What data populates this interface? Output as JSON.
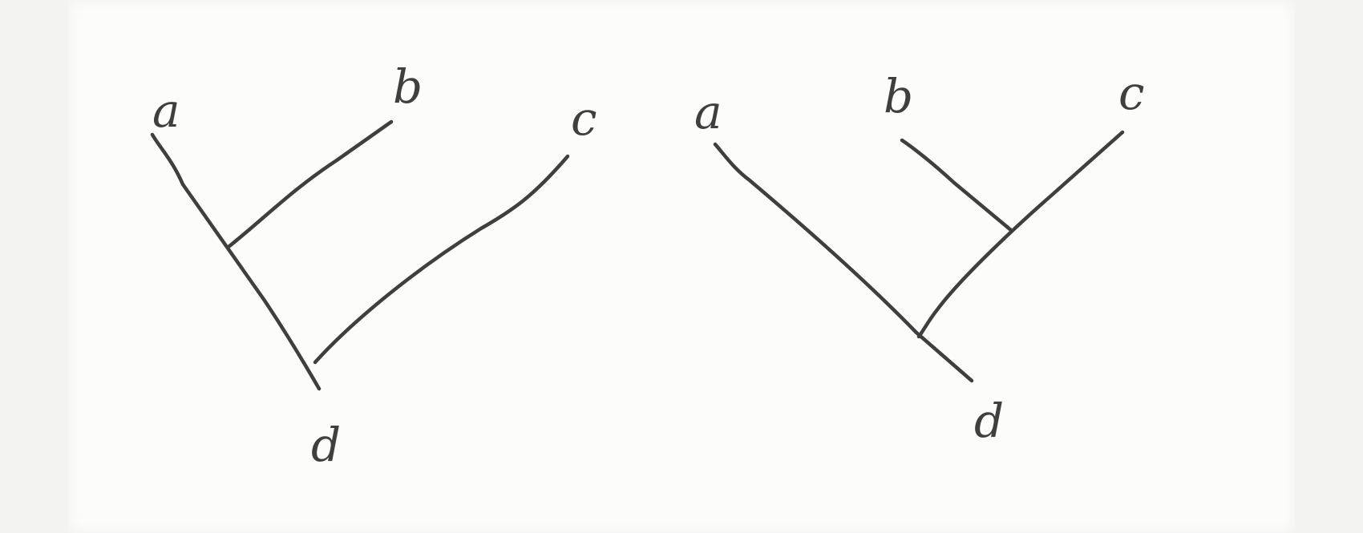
{
  "trees": [
    {
      "id": "tree-left",
      "labels": {
        "a": "a",
        "b": "b",
        "c": "c",
        "d": "d"
      }
    },
    {
      "id": "tree-right",
      "labels": {
        "a": "a",
        "b": "b",
        "c": "c",
        "d": "d"
      }
    }
  ],
  "colors": {
    "ink": "#3f3f3f",
    "paper": "#fcfcfb"
  }
}
